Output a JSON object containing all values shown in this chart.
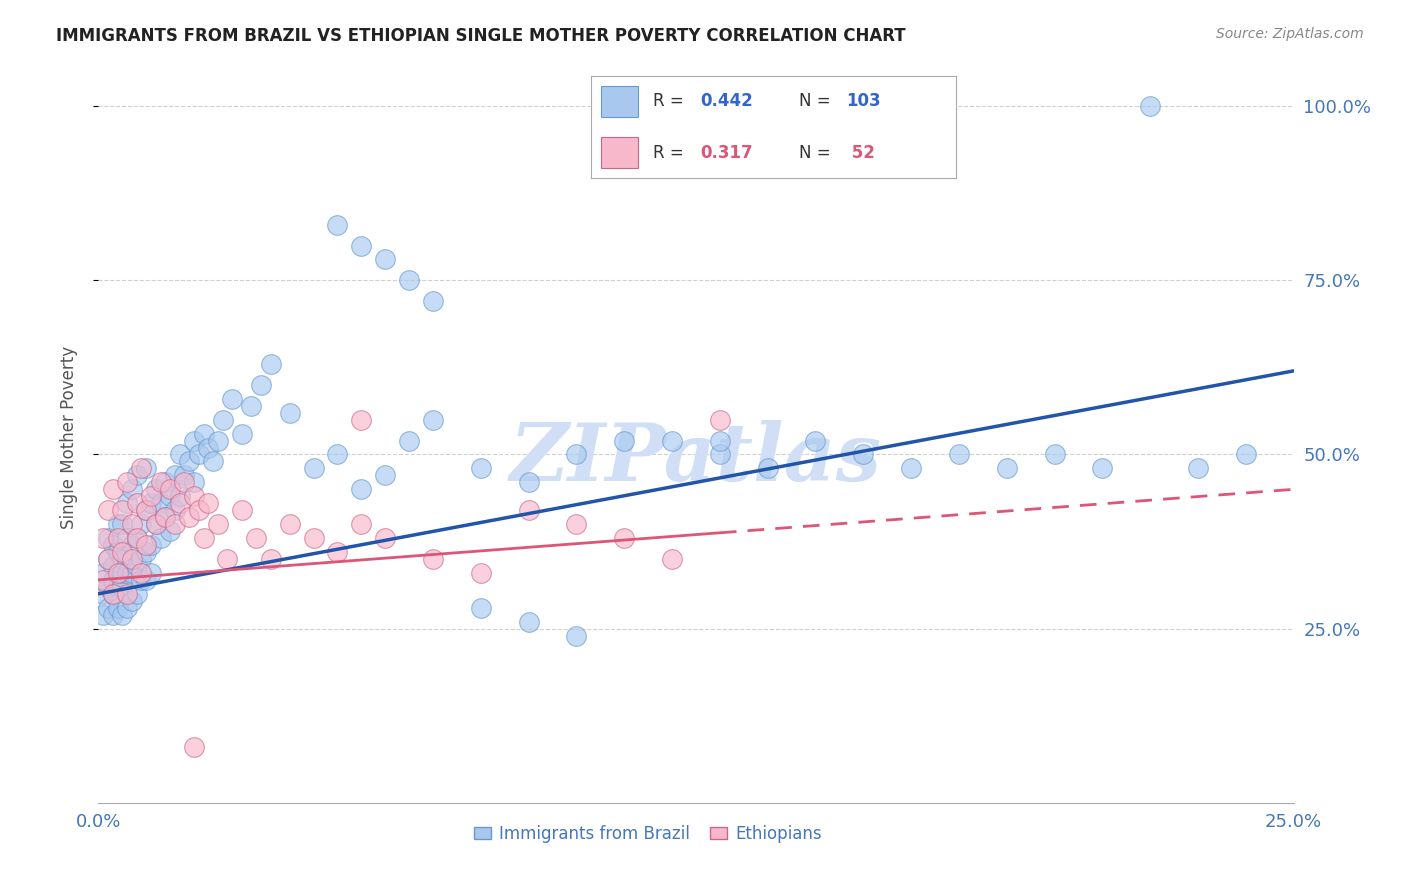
{
  "title": "IMMIGRANTS FROM BRAZIL VS ETHIOPIAN SINGLE MOTHER POVERTY CORRELATION CHART",
  "source": "Source: ZipAtlas.com",
  "ylabel": "Single Mother Poverty",
  "xlim": [
    0.0,
    0.25
  ],
  "ylim": [
    0.0,
    1.05
  ],
  "brazil_R": 0.442,
  "brazil_N": 103,
  "ethiopia_R": 0.317,
  "ethiopia_N": 52,
  "brazil_color": "#a8c8f0",
  "brazil_edge_color": "#6699cc",
  "brazil_line_color": "#2255aa",
  "ethiopia_color": "#f8b8cc",
  "ethiopia_edge_color": "#cc6688",
  "ethiopia_line_color": "#dd5577",
  "watermark_color": "#d0dff5",
  "background_color": "#ffffff",
  "grid_color": "#cccccc",
  "brazil_line_y0": 0.3,
  "brazil_line_y1": 0.62,
  "ethiopia_line_y0": 0.32,
  "ethiopia_line_y1": 0.45,
  "brazil_scatter_x": [
    0.001,
    0.001,
    0.001,
    0.002,
    0.002,
    0.002,
    0.002,
    0.003,
    0.003,
    0.003,
    0.003,
    0.003,
    0.004,
    0.004,
    0.004,
    0.004,
    0.005,
    0.005,
    0.005,
    0.005,
    0.005,
    0.006,
    0.006,
    0.006,
    0.006,
    0.007,
    0.007,
    0.007,
    0.007,
    0.008,
    0.008,
    0.008,
    0.008,
    0.009,
    0.009,
    0.009,
    0.01,
    0.01,
    0.01,
    0.01,
    0.011,
    0.011,
    0.011,
    0.012,
    0.012,
    0.013,
    0.013,
    0.014,
    0.014,
    0.015,
    0.015,
    0.016,
    0.016,
    0.017,
    0.017,
    0.018,
    0.019,
    0.02,
    0.02,
    0.021,
    0.022,
    0.023,
    0.024,
    0.025,
    0.026,
    0.028,
    0.03,
    0.032,
    0.034,
    0.036,
    0.04,
    0.045,
    0.05,
    0.055,
    0.06,
    0.065,
    0.07,
    0.08,
    0.09,
    0.1,
    0.11,
    0.12,
    0.13,
    0.14,
    0.15,
    0.16,
    0.17,
    0.18,
    0.19,
    0.2,
    0.21,
    0.22,
    0.23,
    0.24,
    0.05,
    0.055,
    0.06,
    0.065,
    0.07,
    0.08,
    0.09,
    0.1,
    0.13
  ],
  "brazil_scatter_y": [
    0.33,
    0.3,
    0.27,
    0.35,
    0.31,
    0.28,
    0.38,
    0.34,
    0.3,
    0.27,
    0.37,
    0.32,
    0.36,
    0.31,
    0.28,
    0.4,
    0.35,
    0.31,
    0.27,
    0.4,
    0.33,
    0.38,
    0.33,
    0.28,
    0.43,
    0.37,
    0.33,
    0.29,
    0.45,
    0.38,
    0.34,
    0.3,
    0.47,
    0.4,
    0.35,
    0.32,
    0.42,
    0.36,
    0.32,
    0.48,
    0.43,
    0.37,
    0.33,
    0.45,
    0.4,
    0.43,
    0.38,
    0.46,
    0.41,
    0.44,
    0.39,
    0.47,
    0.42,
    0.5,
    0.44,
    0.47,
    0.49,
    0.52,
    0.46,
    0.5,
    0.53,
    0.51,
    0.49,
    0.52,
    0.55,
    0.58,
    0.53,
    0.57,
    0.6,
    0.63,
    0.56,
    0.48,
    0.5,
    0.45,
    0.47,
    0.52,
    0.55,
    0.48,
    0.46,
    0.5,
    0.52,
    0.52,
    0.5,
    0.48,
    0.52,
    0.5,
    0.48,
    0.5,
    0.48,
    0.5,
    0.48,
    1.0,
    0.48,
    0.5,
    0.83,
    0.8,
    0.78,
    0.75,
    0.72,
    0.28,
    0.26,
    0.24,
    0.52
  ],
  "ethiopia_scatter_x": [
    0.001,
    0.001,
    0.002,
    0.002,
    0.003,
    0.003,
    0.004,
    0.004,
    0.005,
    0.005,
    0.006,
    0.006,
    0.007,
    0.007,
    0.008,
    0.008,
    0.009,
    0.009,
    0.01,
    0.01,
    0.011,
    0.012,
    0.013,
    0.014,
    0.015,
    0.016,
    0.017,
    0.018,
    0.019,
    0.02,
    0.021,
    0.022,
    0.023,
    0.025,
    0.027,
    0.03,
    0.033,
    0.036,
    0.04,
    0.045,
    0.05,
    0.055,
    0.06,
    0.07,
    0.08,
    0.09,
    0.1,
    0.11,
    0.12,
    0.13,
    0.055,
    0.02
  ],
  "ethiopia_scatter_y": [
    0.38,
    0.32,
    0.42,
    0.35,
    0.3,
    0.45,
    0.38,
    0.33,
    0.42,
    0.36,
    0.3,
    0.46,
    0.4,
    0.35,
    0.43,
    0.38,
    0.33,
    0.48,
    0.42,
    0.37,
    0.44,
    0.4,
    0.46,
    0.41,
    0.45,
    0.4,
    0.43,
    0.46,
    0.41,
    0.44,
    0.42,
    0.38,
    0.43,
    0.4,
    0.35,
    0.42,
    0.38,
    0.35,
    0.4,
    0.38,
    0.36,
    0.4,
    0.38,
    0.35,
    0.33,
    0.42,
    0.4,
    0.38,
    0.35,
    0.55,
    0.55,
    0.08
  ]
}
